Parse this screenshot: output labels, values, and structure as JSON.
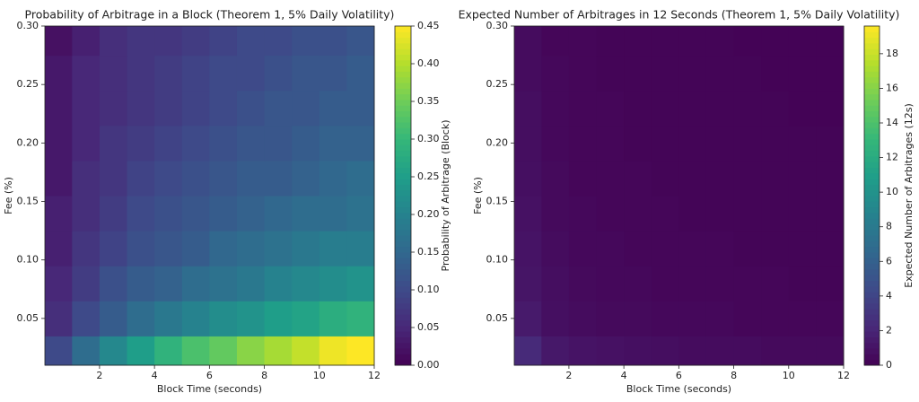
{
  "chart_data": [
    {
      "type": "contour",
      "title": "Probability of Arbitrage in a Block (Theorem 1, 5% Daily Volatility)",
      "x_label": "Block Time (seconds)",
      "y_label": "Fee (%)",
      "colorbar_label": "Probability of Arbitrage (Block)",
      "colormap": "viridis",
      "x": [
        0.5,
        1.5,
        2.5,
        3.5,
        4.5,
        5.5,
        6.5,
        7.5,
        8.5,
        9.5,
        10.5,
        11.5
      ],
      "y": [
        0.02,
        0.05,
        0.08,
        0.11,
        0.14,
        0.17,
        0.2,
        0.23,
        0.26,
        0.29
      ],
      "z": [
        [
          0.1,
          0.16,
          0.21,
          0.25,
          0.29,
          0.32,
          0.34,
          0.37,
          0.39,
          0.41,
          0.44,
          0.45
        ],
        [
          0.06,
          0.1,
          0.13,
          0.16,
          0.18,
          0.2,
          0.22,
          0.23,
          0.25,
          0.26,
          0.28,
          0.29
        ],
        [
          0.05,
          0.08,
          0.11,
          0.13,
          0.14,
          0.16,
          0.17,
          0.18,
          0.2,
          0.21,
          0.22,
          0.23
        ],
        [
          0.04,
          0.07,
          0.09,
          0.11,
          0.12,
          0.13,
          0.15,
          0.16,
          0.17,
          0.18,
          0.19,
          0.19
        ],
        [
          0.04,
          0.06,
          0.08,
          0.1,
          0.11,
          0.12,
          0.13,
          0.14,
          0.15,
          0.16,
          0.16,
          0.17
        ],
        [
          0.03,
          0.06,
          0.07,
          0.09,
          0.1,
          0.11,
          0.12,
          0.13,
          0.13,
          0.14,
          0.15,
          0.16
        ],
        [
          0.03,
          0.05,
          0.07,
          0.08,
          0.09,
          0.1,
          0.11,
          0.12,
          0.12,
          0.13,
          0.14,
          0.14
        ],
        [
          0.03,
          0.05,
          0.06,
          0.07,
          0.08,
          0.09,
          0.1,
          0.11,
          0.12,
          0.12,
          0.13,
          0.13
        ],
        [
          0.03,
          0.05,
          0.06,
          0.07,
          0.08,
          0.09,
          0.1,
          0.1,
          0.11,
          0.12,
          0.12,
          0.13
        ],
        [
          0.02,
          0.04,
          0.06,
          0.07,
          0.07,
          0.08,
          0.09,
          0.1,
          0.1,
          0.11,
          0.11,
          0.12
        ]
      ],
      "xlim": [
        0.01,
        12
      ],
      "ylim": [
        0.01,
        0.3
      ],
      "clim": [
        0,
        0.45
      ],
      "xticks": [
        2,
        4,
        6,
        8,
        10,
        12
      ],
      "yticks": [
        {
          "value": 0.05,
          "label": "0.05"
        },
        {
          "value": 0.1,
          "label": "0.10"
        },
        {
          "value": 0.15,
          "label": "0.15"
        },
        {
          "value": 0.2,
          "label": "0.20"
        },
        {
          "value": 0.25,
          "label": "0.25"
        },
        {
          "value": 0.3,
          "label": "0.30"
        }
      ],
      "cticks": [
        {
          "value": 0,
          "label": "0.00"
        },
        {
          "value": 0.05,
          "label": "0.05"
        },
        {
          "value": 0.1,
          "label": "0.10"
        },
        {
          "value": 0.15,
          "label": "0.15"
        },
        {
          "value": 0.2,
          "label": "0.20"
        },
        {
          "value": 0.25,
          "label": "0.25"
        },
        {
          "value": 0.3,
          "label": "0.30"
        },
        {
          "value": 0.35,
          "label": "0.35"
        },
        {
          "value": 0.4,
          "label": "0.40"
        },
        {
          "value": 0.45,
          "label": "0.45"
        }
      ]
    },
    {
      "type": "contour",
      "title": "Expected Number of Arbitrages in 12 Seconds (Theorem 1, 5% Daily Volatility)",
      "x_label": "Block Time (seconds)",
      "y_label": "Fee (%)",
      "colorbar_label": "Expected Number of Arbitrages (12s)",
      "colormap": "viridis",
      "x": [
        0.5,
        1.5,
        2.5,
        3.5,
        4.5,
        5.5,
        6.5,
        7.5,
        8.5,
        9.5,
        10.5,
        11.5
      ],
      "y": [
        0.02,
        0.05,
        0.08,
        0.11,
        0.14,
        0.17,
        0.2,
        0.23,
        0.26,
        0.29
      ],
      "z": [
        [
          2.3,
          1.3,
          1.0,
          0.9,
          0.8,
          0.7,
          0.6,
          0.6,
          0.6,
          0.5,
          0.5,
          0.5
        ],
        [
          1.4,
          0.8,
          0.6,
          0.5,
          0.5,
          0.4,
          0.4,
          0.4,
          0.3,
          0.3,
          0.3,
          0.3
        ],
        [
          1.1,
          0.7,
          0.5,
          0.4,
          0.4,
          0.3,
          0.3,
          0.3,
          0.3,
          0.3,
          0.2,
          0.2
        ],
        [
          1.0,
          0.6,
          0.4,
          0.4,
          0.3,
          0.3,
          0.3,
          0.3,
          0.2,
          0.2,
          0.2,
          0.2
        ],
        [
          0.9,
          0.5,
          0.4,
          0.3,
          0.3,
          0.3,
          0.2,
          0.2,
          0.2,
          0.2,
          0.2,
          0.2
        ],
        [
          0.8,
          0.5,
          0.3,
          0.3,
          0.3,
          0.2,
          0.2,
          0.2,
          0.2,
          0.2,
          0.2,
          0.2
        ],
        [
          0.7,
          0.4,
          0.3,
          0.3,
          0.2,
          0.2,
          0.2,
          0.2,
          0.2,
          0.2,
          0.2,
          0.2
        ],
        [
          0.7,
          0.4,
          0.3,
          0.3,
          0.2,
          0.2,
          0.2,
          0.2,
          0.2,
          0.2,
          0.1,
          0.1
        ],
        [
          0.6,
          0.4,
          0.3,
          0.2,
          0.2,
          0.2,
          0.2,
          0.2,
          0.2,
          0.1,
          0.1,
          0.1
        ],
        [
          0.6,
          0.3,
          0.3,
          0.2,
          0.2,
          0.2,
          0.2,
          0.2,
          0.1,
          0.1,
          0.1,
          0.1
        ]
      ],
      "xlim": [
        0.01,
        12
      ],
      "ylim": [
        0.01,
        0.3
      ],
      "clim": [
        0,
        19.6
      ],
      "xticks": [
        2,
        4,
        6,
        8,
        10,
        12
      ],
      "yticks": [
        {
          "value": 0.05,
          "label": "0.05"
        },
        {
          "value": 0.1,
          "label": "0.10"
        },
        {
          "value": 0.15,
          "label": "0.15"
        },
        {
          "value": 0.2,
          "label": "0.20"
        },
        {
          "value": 0.25,
          "label": "0.25"
        },
        {
          "value": 0.3,
          "label": "0.30"
        }
      ],
      "cticks": [
        0,
        2,
        4,
        6,
        8,
        10,
        12,
        14,
        16,
        18
      ]
    }
  ]
}
